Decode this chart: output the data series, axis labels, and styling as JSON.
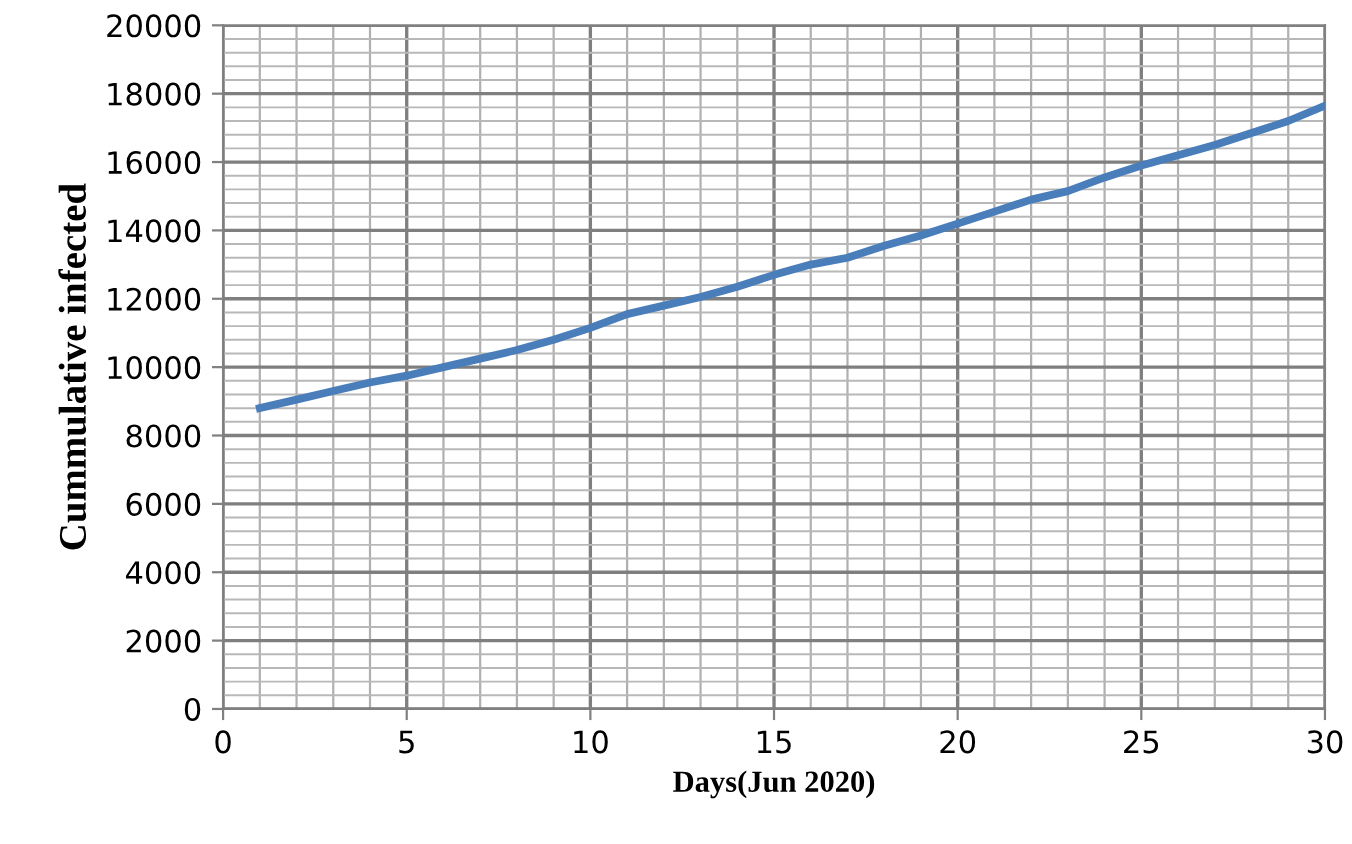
{
  "chart_data": {
    "type": "line",
    "xlabel": "Days(Jun 2020)",
    "ylabel": "Cummulative infected",
    "x": [
      1,
      2,
      3,
      4,
      5,
      6,
      7,
      8,
      9,
      10,
      11,
      12,
      13,
      14,
      15,
      16,
      17,
      18,
      19,
      20,
      21,
      22,
      23,
      24,
      25,
      26,
      27,
      28,
      29,
      30
    ],
    "series": [
      {
        "color": "#4a7ebb",
        "values": [
          8800,
          9050,
          9300,
          9550,
          9750,
          10000,
          10250,
          10500,
          10800,
          11150,
          11550,
          11800,
          12050,
          12350,
          12700,
          13000,
          13200,
          13550,
          13850,
          14200,
          14550,
          14900,
          15150,
          15550,
          15900,
          16200,
          16500,
          16850,
          17200,
          17650
        ]
      }
    ],
    "xlim": [
      0,
      30
    ],
    "xticks": [
      0,
      5,
      10,
      15,
      20,
      25,
      30
    ],
    "ylim": [
      0,
      20000
    ],
    "yticks": [
      0,
      2000,
      4000,
      6000,
      8000,
      10000,
      12000,
      14000,
      16000,
      18000,
      20000
    ],
    "grid": true,
    "marker": "none",
    "line_style": "solid",
    "legend": false
  }
}
